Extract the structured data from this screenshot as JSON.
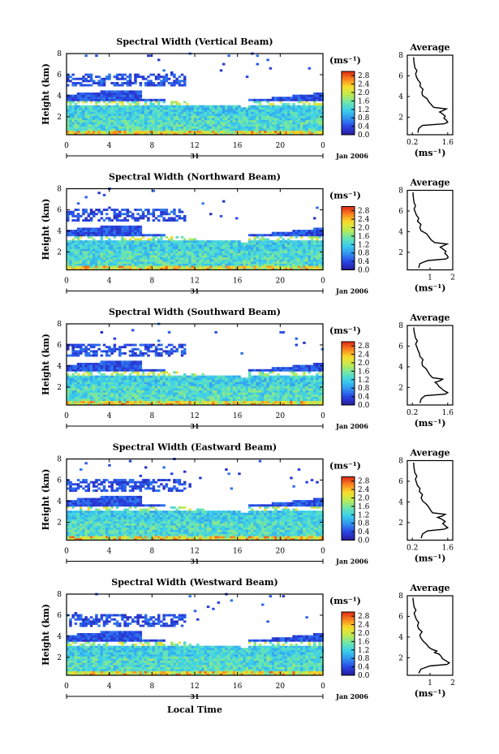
{
  "panels": [
    {
      "title": "Spectral Width (Vertical Beam)",
      "avg_ticks": [
        "0.2",
        "1.6"
      ],
      "avg_xlim": [
        0,
        1.8
      ],
      "avg_profile": [
        [
          0.42,
          0.5
        ],
        [
          0.45,
          0.9
        ],
        [
          0.6,
          1.2
        ],
        [
          1.45,
          1.35
        ],
        [
          1.6,
          1.5
        ],
        [
          1.55,
          1.7
        ],
        [
          1.45,
          1.9
        ],
        [
          1.5,
          2.1
        ],
        [
          1.38,
          2.35
        ],
        [
          1.28,
          2.5
        ],
        [
          1.42,
          2.65
        ],
        [
          1.55,
          2.8
        ],
        [
          1.05,
          2.95
        ],
        [
          0.95,
          3.2
        ],
        [
          0.85,
          3.5
        ],
        [
          0.78,
          3.8
        ],
        [
          0.6,
          4.1
        ],
        [
          0.58,
          4.4
        ],
        [
          0.62,
          4.7
        ],
        [
          0.5,
          5.0
        ],
        [
          0.52,
          5.3
        ],
        [
          0.42,
          5.6
        ],
        [
          0.36,
          5.9
        ],
        [
          0.33,
          6.2
        ],
        [
          0.38,
          6.5
        ],
        [
          0.3,
          6.8
        ],
        [
          0.28,
          7.1
        ],
        [
          0.26,
          7.4
        ],
        [
          0.25,
          7.8
        ]
      ]
    },
    {
      "title": "Spectral Width (Northward Beam)",
      "avg_ticks": [
        "1",
        "2"
      ],
      "avg_xlim": [
        0,
        2.0
      ],
      "avg_profile": [
        [
          0.5,
          0.5
        ],
        [
          0.55,
          0.9
        ],
        [
          0.9,
          1.2
        ],
        [
          1.7,
          1.35
        ],
        [
          1.8,
          1.5
        ],
        [
          1.75,
          1.7
        ],
        [
          1.65,
          1.9
        ],
        [
          1.7,
          2.1
        ],
        [
          1.55,
          2.35
        ],
        [
          1.45,
          2.5
        ],
        [
          1.6,
          2.65
        ],
        [
          1.75,
          2.8
        ],
        [
          1.2,
          2.95
        ],
        [
          1.05,
          3.2
        ],
        [
          0.95,
          3.5
        ],
        [
          0.85,
          3.8
        ],
        [
          0.6,
          4.1
        ],
        [
          0.55,
          4.4
        ],
        [
          0.6,
          4.7
        ],
        [
          0.45,
          5.0
        ],
        [
          0.5,
          5.3
        ],
        [
          0.4,
          5.6
        ],
        [
          0.35,
          5.9
        ],
        [
          0.3,
          6.2
        ],
        [
          0.36,
          6.5
        ],
        [
          0.3,
          6.8
        ],
        [
          0.28,
          7.1
        ],
        [
          0.26,
          7.4
        ],
        [
          0.25,
          7.8
        ]
      ]
    },
    {
      "title": "Spectral Width (Southward Beam)",
      "avg_ticks": [
        "0.2",
        "1.6"
      ],
      "avg_xlim": [
        0,
        1.8
      ],
      "avg_profile": [
        [
          0.5,
          0.5
        ],
        [
          0.55,
          0.9
        ],
        [
          0.7,
          1.2
        ],
        [
          1.5,
          1.35
        ],
        [
          1.6,
          1.5
        ],
        [
          1.45,
          1.7
        ],
        [
          1.35,
          1.9
        ],
        [
          1.25,
          2.1
        ],
        [
          1.18,
          2.35
        ],
        [
          1.1,
          2.5
        ],
        [
          1.3,
          2.65
        ],
        [
          1.4,
          2.8
        ],
        [
          1.0,
          2.95
        ],
        [
          0.9,
          3.2
        ],
        [
          0.82,
          3.5
        ],
        [
          0.75,
          3.8
        ],
        [
          0.6,
          4.1
        ],
        [
          0.58,
          4.4
        ],
        [
          0.62,
          4.7
        ],
        [
          0.5,
          5.0
        ],
        [
          0.48,
          5.3
        ],
        [
          0.42,
          5.6
        ],
        [
          0.38,
          5.9
        ],
        [
          0.33,
          6.2
        ],
        [
          0.4,
          6.5
        ],
        [
          0.32,
          6.8
        ],
        [
          0.3,
          7.1
        ],
        [
          0.27,
          7.4
        ],
        [
          0.25,
          7.8
        ]
      ]
    },
    {
      "title": "Spectral Width (Eastward Beam)",
      "avg_ticks": [
        "0.2",
        "1.6"
      ],
      "avg_xlim": [
        0,
        1.8
      ],
      "avg_profile": [
        [
          0.55,
          0.5
        ],
        [
          0.6,
          0.9
        ],
        [
          0.8,
          1.2
        ],
        [
          1.45,
          1.35
        ],
        [
          1.6,
          1.5
        ],
        [
          1.5,
          1.7
        ],
        [
          1.4,
          1.9
        ],
        [
          1.5,
          2.1
        ],
        [
          1.35,
          2.35
        ],
        [
          1.2,
          2.5
        ],
        [
          1.4,
          2.65
        ],
        [
          1.5,
          2.8
        ],
        [
          1.0,
          2.95
        ],
        [
          0.92,
          3.2
        ],
        [
          0.85,
          3.5
        ],
        [
          0.75,
          3.8
        ],
        [
          0.6,
          4.1
        ],
        [
          0.55,
          4.4
        ],
        [
          0.6,
          4.7
        ],
        [
          0.48,
          5.0
        ],
        [
          0.5,
          5.3
        ],
        [
          0.4,
          5.6
        ],
        [
          0.36,
          5.9
        ],
        [
          0.32,
          6.2
        ],
        [
          0.38,
          6.5
        ],
        [
          0.3,
          6.8
        ],
        [
          0.28,
          7.1
        ],
        [
          0.26,
          7.4
        ],
        [
          0.25,
          7.8
        ]
      ]
    },
    {
      "title": "Spectral Width (Westward Beam)",
      "avg_ticks": [
        "1",
        "2"
      ],
      "avg_xlim": [
        0,
        2.0
      ],
      "avg_profile": [
        [
          0.5,
          0.5
        ],
        [
          0.6,
          0.9
        ],
        [
          1.0,
          1.2
        ],
        [
          1.75,
          1.35
        ],
        [
          1.85,
          1.5
        ],
        [
          1.7,
          1.7
        ],
        [
          1.55,
          1.9
        ],
        [
          1.5,
          2.1
        ],
        [
          1.4,
          2.35
        ],
        [
          1.2,
          2.5
        ],
        [
          1.3,
          2.65
        ],
        [
          1.1,
          2.8
        ],
        [
          0.95,
          3.0
        ],
        [
          0.85,
          3.3
        ],
        [
          0.7,
          3.6
        ],
        [
          0.6,
          3.9
        ],
        [
          0.55,
          4.2
        ],
        [
          0.65,
          4.5
        ],
        [
          0.5,
          4.8
        ],
        [
          0.45,
          5.1
        ],
        [
          0.5,
          5.4
        ],
        [
          0.4,
          5.7
        ],
        [
          0.35,
          6.0
        ],
        [
          0.3,
          6.3
        ],
        [
          0.38,
          6.6
        ],
        [
          0.3,
          6.9
        ],
        [
          0.28,
          7.2
        ],
        [
          0.26,
          7.5
        ],
        [
          0.25,
          7.8
        ]
      ]
    }
  ],
  "chart_data": {
    "type": "heatmap",
    "panel_titles": [
      "Spectral Width (Vertical Beam)",
      "Spectral Width (Northward Beam)",
      "Spectral Width (Southward Beam)",
      "Spectral Width (Eastward Beam)",
      "Spectral Width (Westward Beam)"
    ],
    "ylabel": "Height (km)",
    "xlabel": "Local Time",
    "x_ticks": [
      "0",
      "4",
      "8",
      "12",
      "16",
      "20",
      "0"
    ],
    "y_ticks": [
      "2",
      "4",
      "6",
      "8"
    ],
    "xlim": [
      0,
      24
    ],
    "ylim": [
      0.3,
      8.0
    ],
    "date_labels": [
      "31",
      "Jan 2006"
    ],
    "colorbar": {
      "unit": "(ms⁻¹)",
      "ticks": [
        "0.0",
        "0.4",
        "0.8",
        "1.2",
        "1.6",
        "2.0",
        "2.4",
        "2.8"
      ],
      "range": [
        0,
        3.0
      ]
    },
    "average_panel": {
      "title": "Average",
      "xlabel": "(ms⁻¹)",
      "y_ticks": [
        "2",
        "4",
        "6",
        "8"
      ],
      "ylim": [
        0.3,
        8.0
      ]
    }
  }
}
